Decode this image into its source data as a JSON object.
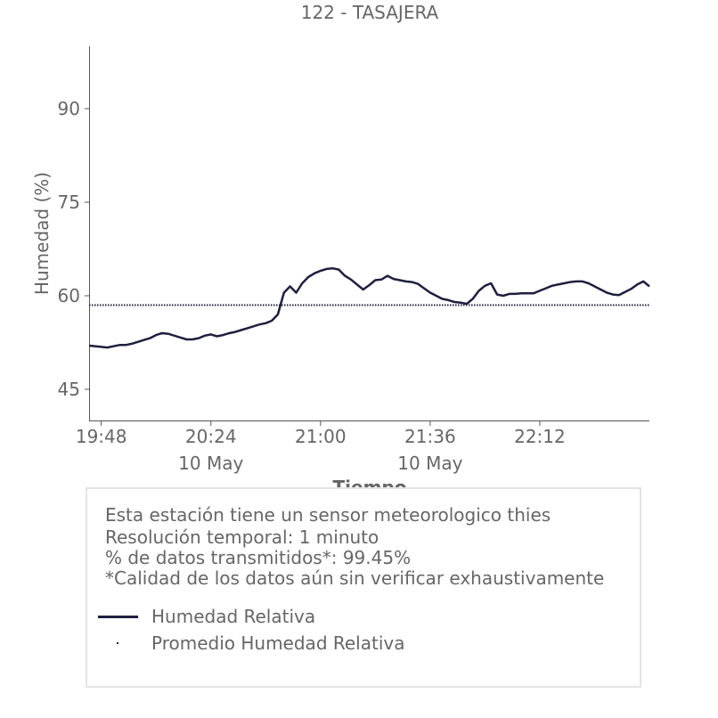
{
  "colors": {
    "line": "#1f1f3f",
    "axis": "#555555",
    "text": "#666666",
    "box_border": "#e4e4e4"
  },
  "chart_data": {
    "type": "line",
    "title": "122 - TASAJERA",
    "xlabel": "Tiempo",
    "ylabel": "Humedad (%)",
    "x_ticks": [
      "19:48",
      "20:24",
      "21:00",
      "21:36",
      "22:12"
    ],
    "x_date_labels": [
      {
        "after_tick": "20:24",
        "label": "10 May"
      },
      {
        "after_tick": "21:36",
        "label": "10 May"
      }
    ],
    "y_ticks": [
      45,
      60,
      75,
      90
    ],
    "ylim": [
      40,
      100
    ],
    "xlim": [
      "19:44",
      "22:48"
    ],
    "grid": false,
    "series": [
      {
        "name": "Humedad Relativa",
        "style": "solid",
        "x": [
          "19:44",
          "19:48",
          "19:50",
          "19:52",
          "19:54",
          "19:56",
          "19:58",
          "20:00",
          "20:02",
          "20:04",
          "20:06",
          "20:08",
          "20:10",
          "20:12",
          "20:14",
          "20:16",
          "20:18",
          "20:20",
          "20:22",
          "20:24",
          "20:26",
          "20:28",
          "20:30",
          "20:32",
          "20:34",
          "20:36",
          "20:38",
          "20:40",
          "20:42",
          "20:44",
          "20:46",
          "20:48",
          "20:50",
          "20:52",
          "20:54",
          "20:56",
          "20:58",
          "21:00",
          "21:02",
          "21:04",
          "21:06",
          "21:08",
          "21:10",
          "21:12",
          "21:14",
          "21:16",
          "21:18",
          "21:20",
          "21:22",
          "21:24",
          "21:26",
          "21:28",
          "21:30",
          "21:32",
          "21:34",
          "21:36",
          "21:38",
          "21:40",
          "21:42",
          "21:44",
          "21:46",
          "21:48",
          "21:50",
          "21:52",
          "21:54",
          "21:56",
          "21:58",
          "22:00",
          "22:02",
          "22:04",
          "22:06",
          "22:08",
          "22:10",
          "22:12",
          "22:14",
          "22:16",
          "22:18",
          "22:20",
          "22:22",
          "22:24",
          "22:26",
          "22:28",
          "22:30",
          "22:32",
          "22:34",
          "22:36",
          "22:38",
          "22:40",
          "22:42",
          "22:44",
          "22:46",
          "22:48"
        ],
        "values": [
          52.0,
          51.8,
          51.7,
          51.9,
          52.1,
          52.1,
          52.3,
          52.6,
          52.9,
          53.2,
          53.7,
          54.0,
          53.9,
          53.6,
          53.3,
          53.0,
          53.0,
          53.2,
          53.6,
          53.8,
          53.5,
          53.7,
          54.0,
          54.2,
          54.5,
          54.8,
          55.1,
          55.4,
          55.6,
          56.0,
          57.0,
          60.5,
          61.5,
          60.5,
          62.0,
          63.0,
          63.6,
          64.0,
          64.3,
          64.4,
          64.2,
          63.2,
          62.6,
          61.8,
          61.0,
          61.7,
          62.5,
          62.6,
          63.2,
          62.7,
          62.5,
          62.3,
          62.2,
          61.9,
          61.2,
          60.5,
          60.0,
          59.5,
          59.3,
          59.0,
          58.9,
          58.7,
          59.5,
          60.8,
          61.6,
          62.0,
          60.2,
          60.0,
          60.3,
          60.3,
          60.4,
          60.4,
          60.4,
          60.8,
          61.2,
          61.6,
          61.8,
          62.0,
          62.2,
          62.3,
          62.3,
          62.0,
          61.5,
          61.0,
          60.5,
          60.2,
          60.1,
          60.6,
          61.1,
          61.8,
          62.3,
          61.5
        ]
      },
      {
        "name": "Promedio Humedad Relativa",
        "style": "dotted",
        "x": [
          "19:44",
          "22:48"
        ],
        "values": [
          58.5,
          58.5
        ]
      }
    ]
  },
  "info": {
    "line1": "Esta estación tiene un sensor meteorologico thies",
    "line2": "Resolución temporal: 1 minuto",
    "line3": "% de datos transmitidos*: 99.45%",
    "line4": "*Calidad de los datos aún sin verificar exhaustivamente"
  },
  "legend": {
    "item1": "Humedad Relativa",
    "item2": "Promedio Humedad Relativa"
  }
}
